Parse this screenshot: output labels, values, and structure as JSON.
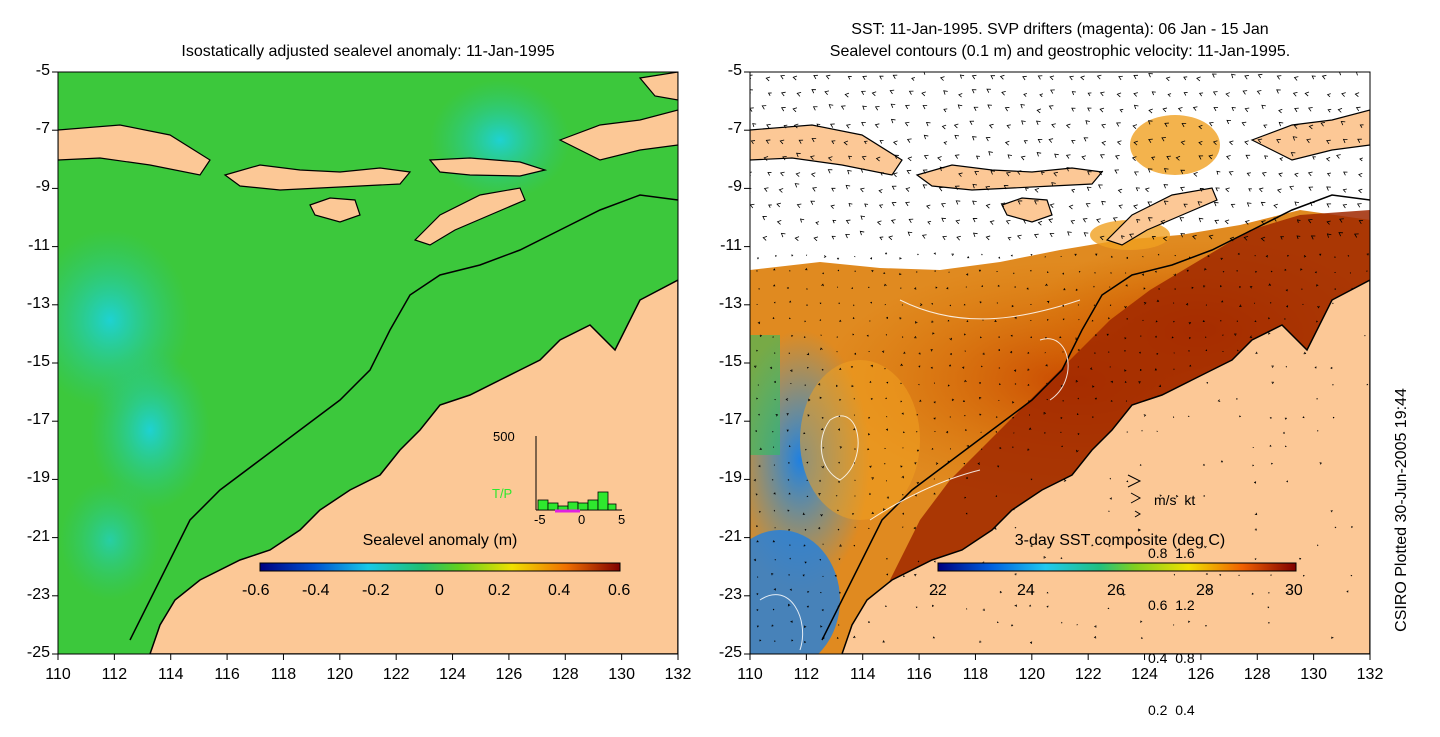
{
  "left_panel": {
    "title": "Isostatically adjusted sealevel anomaly: 11-Jan-1995",
    "colorbar": {
      "label": "Sealevel anomaly (m)",
      "ticks": [
        "-0.6",
        "-0.4",
        "-0.2",
        "0",
        "0.2",
        "0.4",
        "0.6"
      ]
    },
    "histogram": {
      "ymax_label": "500",
      "series_label": "T/P",
      "xticks": [
        "-5",
        "0",
        "5"
      ]
    }
  },
  "right_panel": {
    "title_line1": "SST: 11-Jan-1995. SVP drifters (magenta): 06 Jan - 15 Jan",
    "title_line2": "Sealevel contours (0.1 m) and geostrophic velocity: 11-Jan-1995.",
    "colorbar": {
      "label": "3-day SST composite (deg C)",
      "ticks": [
        "22",
        "24",
        "26",
        "28",
        "30"
      ]
    },
    "velocity_legend": {
      "header": "m/s  kt",
      "rows": [
        "0.8  1.6",
        "0.6  1.2",
        "0.4  0.8",
        "0.2  0.4"
      ]
    }
  },
  "axes": {
    "lat_ticks": [
      "-5",
      "-7",
      "-9",
      "-11",
      "-13",
      "-15",
      "-17",
      "-19",
      "-21",
      "-23",
      "-25"
    ],
    "lon_ticks": [
      "110",
      "112",
      "114",
      "116",
      "118",
      "120",
      "122",
      "124",
      "126",
      "128",
      "130",
      "132"
    ]
  },
  "credit": "CSIRO Plotted 30-Jun-2005 19:44",
  "colors": {
    "land": "#fcc896",
    "sea_anomaly": "#3cc83c",
    "coast": "#000000"
  }
}
